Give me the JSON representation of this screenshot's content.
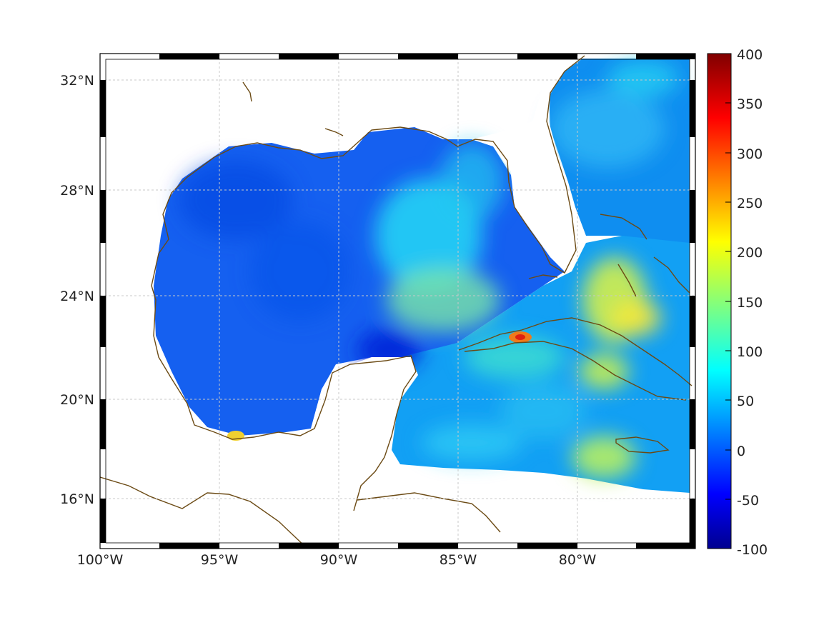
{
  "map": {
    "lon_labels": [
      "100°W",
      "95°W",
      "90°W",
      "85°W",
      "80°W"
    ],
    "lat_labels": [
      "32°N",
      "28°N",
      "24°N",
      "20°N",
      "16°N"
    ],
    "colorbar": {
      "ticks": [
        "400",
        "350",
        "300",
        "250",
        "200",
        "150",
        "100",
        "50",
        "0",
        "-50",
        "-100"
      ],
      "range": [
        -100,
        400
      ],
      "colors": [
        "#00008f",
        "#0000ff",
        "#00ffff",
        "#ffff00",
        "#ff0000",
        "#800000"
      ]
    },
    "colors": {
      "coastline": "#6b4a14",
      "land": "#ffffff",
      "grid": "#cccccc"
    }
  }
}
